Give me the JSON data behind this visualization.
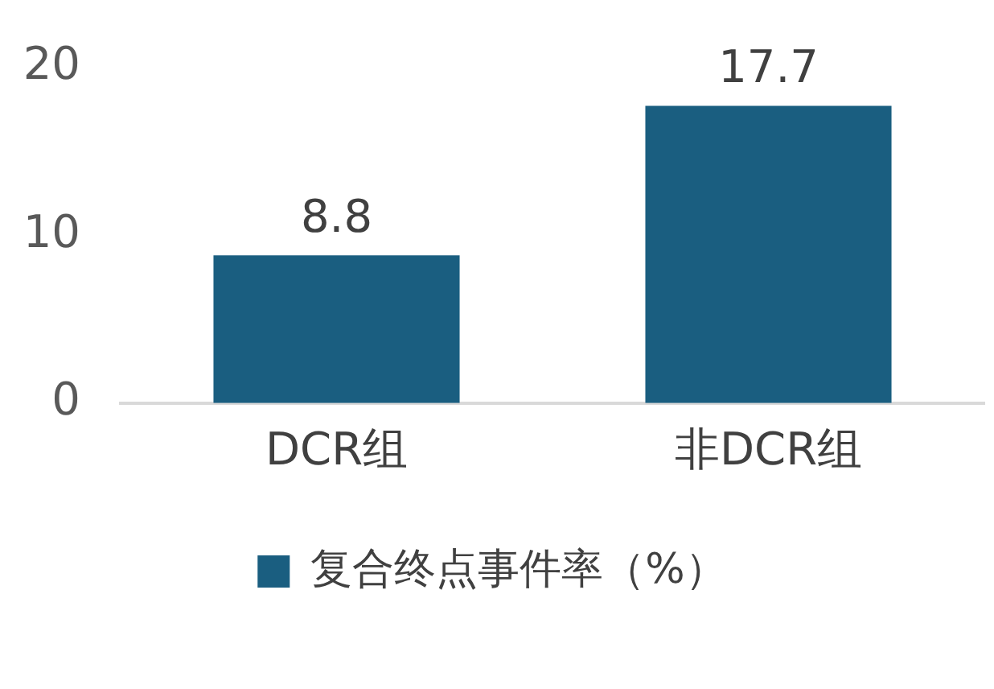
{
  "chart_data": {
    "type": "bar",
    "categories": [
      "DCR组",
      "非DCR组"
    ],
    "series": [
      {
        "name": "复合终点事件率（%）",
        "color": "#1a5e80",
        "values": [
          8.8,
          17.7
        ]
      }
    ],
    "ylim": [
      0,
      20
    ],
    "yticks": [
      0,
      10,
      20
    ],
    "grid": false,
    "legend": "bottom",
    "data_labels": true
  }
}
